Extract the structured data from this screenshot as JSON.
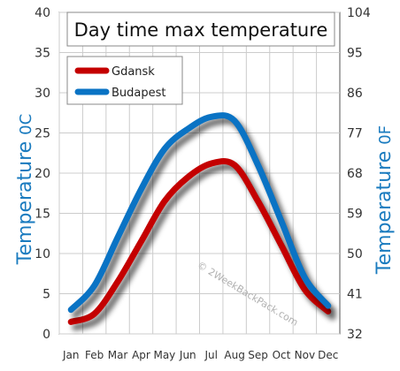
{
  "chart_data": {
    "type": "line",
    "title": "Day time max temperature",
    "categories": [
      "Jan",
      "Feb",
      "Mar",
      "Apr",
      "May",
      "Jun",
      "Jul",
      "Aug",
      "Sep",
      "Oct",
      "Nov",
      "Dec"
    ],
    "series": [
      {
        "name": "Gdansk",
        "color": "#c40000",
        "values": [
          1.5,
          2.5,
          6.5,
          11.5,
          16.5,
          19.5,
          21.2,
          21.0,
          16.5,
          11.0,
          5.5,
          2.8
        ]
      },
      {
        "name": "Budapest",
        "color": "#0a73c4",
        "values": [
          3,
          6,
          12,
          18,
          23,
          25.5,
          27,
          26.5,
          21,
          14,
          7,
          3.5
        ]
      }
    ],
    "ylabel_left": "Temperature",
    "ylabel_left_unit": "0C",
    "ylabel_right": "Temperature",
    "ylabel_right_unit": "0F",
    "ylim": [
      0,
      40
    ],
    "yticks_left": [
      0,
      5,
      10,
      15,
      20,
      25,
      30,
      35,
      40
    ],
    "yticks_right": [
      32,
      41,
      50,
      59,
      68,
      77,
      86,
      95,
      104
    ],
    "grid": true,
    "legend_position": "top-left",
    "watermark": "© 2WeekBackPack.com",
    "axis_title_color": "#1a7bbf"
  }
}
